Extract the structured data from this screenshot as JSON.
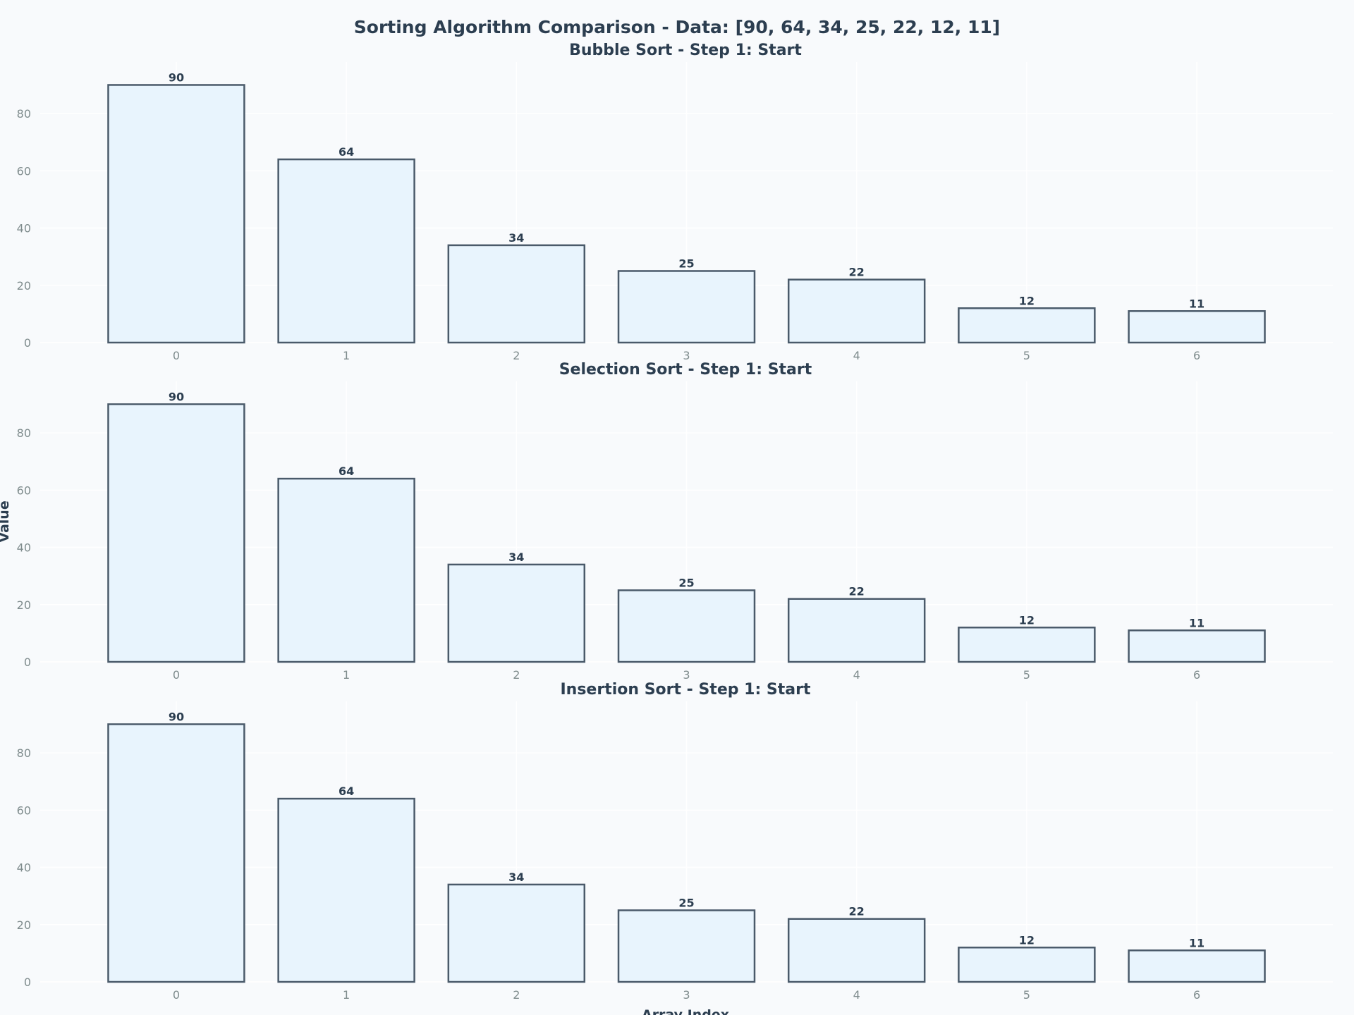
{
  "figure": {
    "title": "Sorting Algorithm Comparison - Data: [90, 64, 34, 25, 22, 12, 11]",
    "xlabel": "Array Index",
    "ylabel": "Value"
  },
  "colors": {
    "background": "#f8fafc",
    "bar_fill": "#e8f4fd",
    "bar_edge": "#4a5a6a",
    "text": "#2c3e50",
    "tick_text": "#7f8c8d"
  },
  "chart_data": [
    {
      "type": "bar",
      "title": "Bubble Sort - Step 1: Start",
      "categories": [
        "0",
        "1",
        "2",
        "3",
        "4",
        "5",
        "6"
      ],
      "values": [
        90,
        64,
        34,
        25,
        22,
        12,
        11
      ],
      "yticks": [
        0,
        20,
        40,
        60,
        80
      ],
      "ylim": [
        0,
        98
      ],
      "grid": true
    },
    {
      "type": "bar",
      "title": "Selection Sort - Step 1: Start",
      "categories": [
        "0",
        "1",
        "2",
        "3",
        "4",
        "5",
        "6"
      ],
      "values": [
        90,
        64,
        34,
        25,
        22,
        12,
        11
      ],
      "yticks": [
        0,
        20,
        40,
        60,
        80
      ],
      "ylim": [
        0,
        98
      ],
      "grid": true
    },
    {
      "type": "bar",
      "title": "Insertion Sort - Step 1: Start",
      "categories": [
        "0",
        "1",
        "2",
        "3",
        "4",
        "5",
        "6"
      ],
      "values": [
        90,
        64,
        34,
        25,
        22,
        12,
        11
      ],
      "yticks": [
        0,
        20,
        40,
        60,
        80
      ],
      "ylim": [
        0,
        98
      ],
      "grid": true
    }
  ]
}
